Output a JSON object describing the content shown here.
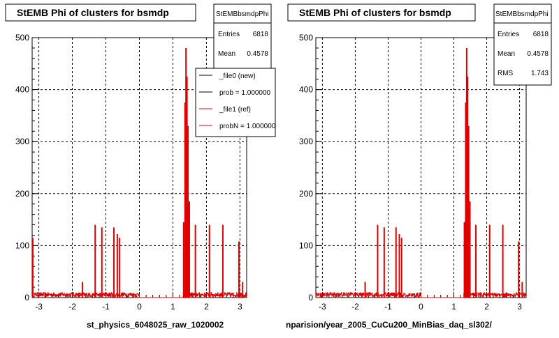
{
  "chart_data": [
    {
      "type": "histogram",
      "title": "StEMB Phi of clusters for bsmdp",
      "xlabel": "st_physics_6048025_raw_1020002",
      "ylabel": "",
      "xlim": [
        -3.2,
        3.2
      ],
      "ylim": [
        0,
        500
      ],
      "xticks": [
        -3,
        -2,
        -1,
        0,
        1,
        2,
        3
      ],
      "yticks": [
        0,
        100,
        200,
        300,
        400,
        500
      ],
      "grid": true,
      "stats": {
        "name": "StEMBbsmdpPhi",
        "entries_label": "Entries",
        "entries": "6818",
        "mean_label": "Mean",
        "mean": "0.4578"
      },
      "legend": {
        "placement": "top-right",
        "entries": [
          {
            "label": "_file0 (new)",
            "color": "#000000"
          },
          {
            "label": "prob = 1.000000",
            "color": "#000000"
          },
          {
            "label": "_file1 (ref)",
            "color": "#e00000"
          },
          {
            "label": "probN = 1.000000",
            "color": "#e00000"
          }
        ]
      },
      "series": [
        {
          "name": "_file1 (ref)",
          "color": "#e00000",
          "style": "histogram"
        }
      ],
      "peaks": [
        {
          "x": -3.18,
          "y": 115
        },
        {
          "x": -1.7,
          "y": 30
        },
        {
          "x": -1.32,
          "y": 140
        },
        {
          "x": -1.12,
          "y": 135
        },
        {
          "x": -0.76,
          "y": 135
        },
        {
          "x": -0.66,
          "y": 122
        },
        {
          "x": -0.59,
          "y": 115
        },
        {
          "x": 1.32,
          "y": 145
        },
        {
          "x": 1.36,
          "y": 375
        },
        {
          "x": 1.39,
          "y": 480
        },
        {
          "x": 1.42,
          "y": 425
        },
        {
          "x": 1.45,
          "y": 330
        },
        {
          "x": 1.49,
          "y": 185
        },
        {
          "x": 1.67,
          "y": 140
        },
        {
          "x": 2.09,
          "y": 140
        },
        {
          "x": 2.49,
          "y": 140
        },
        {
          "x": 2.97,
          "y": 108
        },
        {
          "x": 3.08,
          "y": 30
        }
      ],
      "baseline_level": 7
    },
    {
      "type": "histogram",
      "title": "StEMB Phi of clusters for bsmdp",
      "xlabel": "nparision/year_2005_CuCu200_MinBias_daq_sl302/",
      "ylabel": "",
      "xlim": [
        -3.2,
        3.2
      ],
      "ylim": [
        0,
        500
      ],
      "xticks": [
        -3,
        -2,
        -1,
        0,
        1,
        2,
        3
      ],
      "yticks": [
        0,
        100,
        200,
        300,
        400,
        500
      ],
      "grid": true,
      "stats": {
        "name": "StEMBbsmdpPhi",
        "entries_label": "Entries",
        "entries": "6818",
        "mean_label": "Mean",
        "mean": "0.4578",
        "rms_label": "RMS",
        "rms": "1.743"
      },
      "series": [
        {
          "name": "",
          "color": "#e00000",
          "style": "histogram"
        }
      ],
      "peaks": [
        {
          "x": -1.7,
          "y": 30
        },
        {
          "x": -1.32,
          "y": 140
        },
        {
          "x": -1.12,
          "y": 135
        },
        {
          "x": -0.76,
          "y": 135
        },
        {
          "x": -0.66,
          "y": 122
        },
        {
          "x": -0.59,
          "y": 115
        },
        {
          "x": 1.32,
          "y": 145
        },
        {
          "x": 1.36,
          "y": 375
        },
        {
          "x": 1.39,
          "y": 480
        },
        {
          "x": 1.42,
          "y": 425
        },
        {
          "x": 1.45,
          "y": 330
        },
        {
          "x": 1.49,
          "y": 185
        },
        {
          "x": 1.67,
          "y": 140
        },
        {
          "x": 2.09,
          "y": 140
        },
        {
          "x": 2.49,
          "y": 140
        },
        {
          "x": 2.97,
          "y": 108
        },
        {
          "x": 3.08,
          "y": 30
        }
      ],
      "baseline_level": 7
    }
  ]
}
